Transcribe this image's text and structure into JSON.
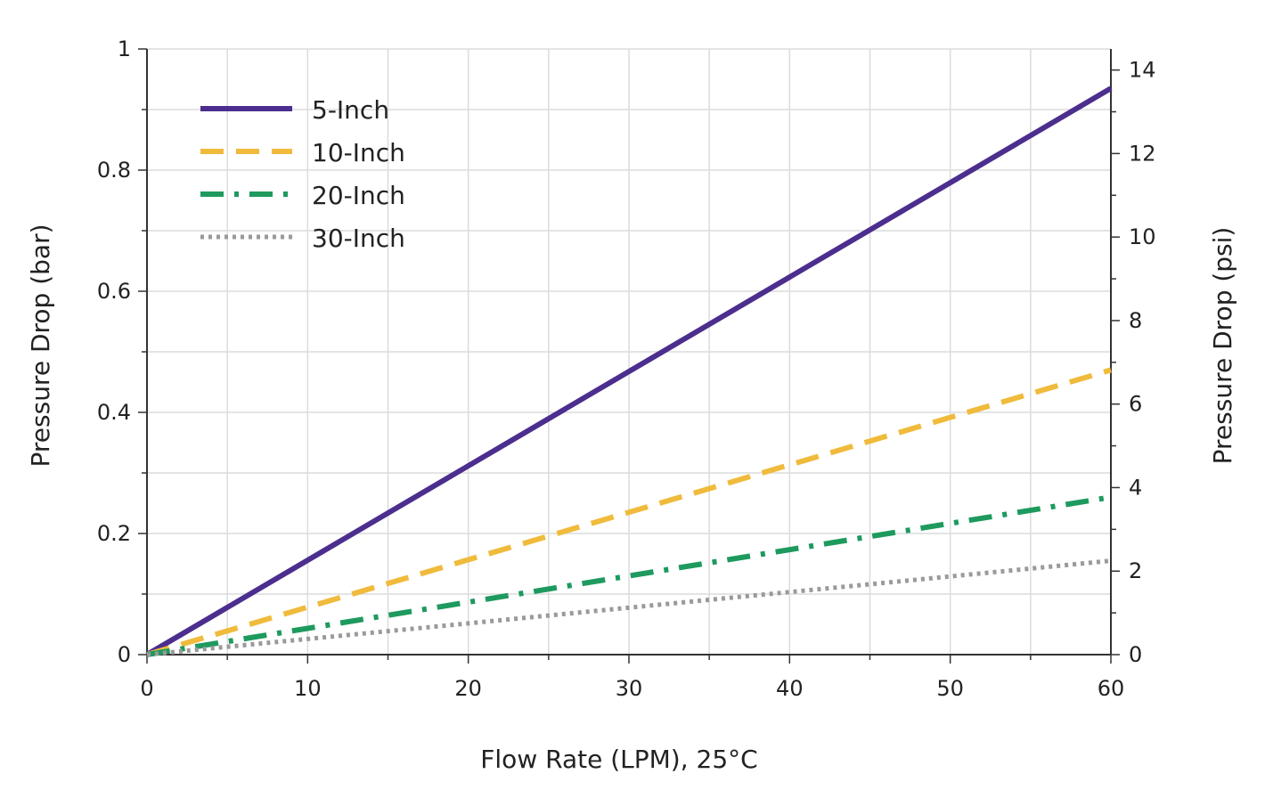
{
  "chart_data": {
    "type": "line",
    "title": "",
    "xlabel": "Flow Rate (LPM), 25°C",
    "ylabel": "Pressure Drop (bar)",
    "y2label": "Pressure Drop (psi)",
    "xlim": [
      0,
      60
    ],
    "ylim": [
      0,
      1
    ],
    "y2lim": [
      0,
      14.5038
    ],
    "x_ticks": [
      "0",
      "10",
      "20",
      "30",
      "40",
      "50",
      "60"
    ],
    "y_ticks": [
      "0",
      "0.2",
      "0.4",
      "0.6",
      "0.8",
      "1"
    ],
    "y2_ticks": [
      "0",
      "2",
      "4",
      "6",
      "8",
      "10",
      "12",
      "14"
    ],
    "grid": true,
    "legend_position": "top-left",
    "series": [
      {
        "name": "5-Inch",
        "x": [
          0,
          60
        ],
        "values": [
          0,
          0.935
        ],
        "color": "#4b2e8e",
        "style": "solid"
      },
      {
        "name": "10-Inch",
        "x": [
          0,
          60
        ],
        "values": [
          0,
          0.47
        ],
        "color": "#f0bb3c",
        "style": "dashed"
      },
      {
        "name": "20-Inch",
        "x": [
          0,
          60
        ],
        "values": [
          0,
          0.26
        ],
        "color": "#1e9a5e",
        "style": "dashdot"
      },
      {
        "name": "30-Inch",
        "x": [
          0,
          60
        ],
        "values": [
          0,
          0.155
        ],
        "color": "#9a9a9a",
        "style": "dotted"
      }
    ]
  }
}
